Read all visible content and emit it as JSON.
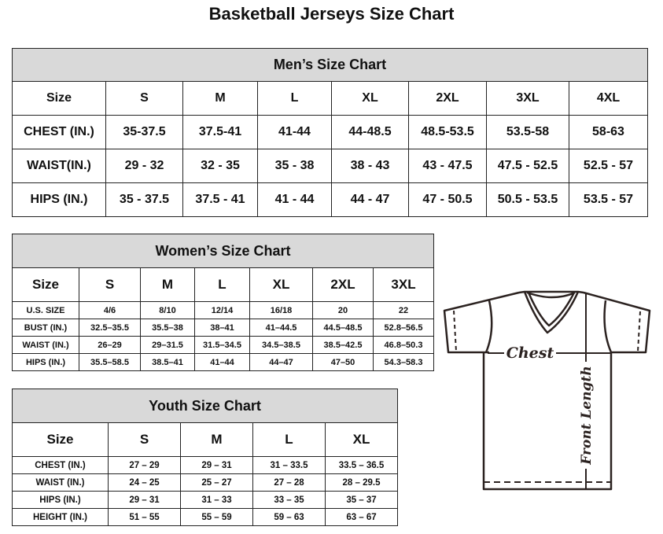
{
  "title": "Basketball Jerseys Size Chart",
  "men": {
    "caption": "Men’s Size Chart",
    "header": [
      "Size",
      "S",
      "M",
      "L",
      "XL",
      "2XL",
      "3XL",
      "4XL"
    ],
    "rows": [
      [
        "CHEST (IN.)",
        "35-37.5",
        "37.5-41",
        "41-44",
        "44-48.5",
        "48.5-53.5",
        "53.5-58",
        "58-63"
      ],
      [
        "WAIST(IN.)",
        "29 - 32",
        "32 - 35",
        "35 - 38",
        "38 - 43",
        "43 - 47.5",
        "47.5 - 52.5",
        "52.5 - 57"
      ],
      [
        "HIPS (IN.)",
        "35 - 37.5",
        "37.5 - 41",
        "41 - 44",
        "44 - 47",
        "47 - 50.5",
        "50.5 - 53.5",
        "53.5 - 57"
      ]
    ]
  },
  "women": {
    "caption": "Women’s Size Chart",
    "header": [
      "Size",
      "S",
      "M",
      "L",
      "XL",
      "2XL",
      "3XL"
    ],
    "rows": [
      [
        "U.S.  SIZE",
        "4/6",
        "8/10",
        "12/14",
        "16/18",
        "20",
        "22"
      ],
      [
        "BUST  (IN.)",
        "32.5–35.5",
        "35.5–38",
        "38–41",
        "41–44.5",
        "44.5–48.5",
        "52.8–56.5"
      ],
      [
        "WAIST  (IN.)",
        "26–29",
        "29–31.5",
        "31.5–34.5",
        "34.5–38.5",
        "38.5–42.5",
        "46.8–50.3"
      ],
      [
        "HIPS  (IN.)",
        "35.5–58.5",
        "38.5–41",
        "41–44",
        "44–47",
        "47–50",
        "54.3–58.3"
      ]
    ]
  },
  "youth": {
    "caption": "Youth Size Chart",
    "header": [
      "Size",
      "S",
      "M",
      "L",
      "XL"
    ],
    "rows": [
      [
        "CHEST  (IN.)",
        "27  –  29",
        "29  –  31",
        "31  –  33.5",
        "33.5  –  36.5"
      ],
      [
        "WAIST  (IN.)",
        "24  –  25",
        "25  –  27",
        "27  –  28",
        "28  –  29.5"
      ],
      [
        "HIPS  (IN.)",
        "29  –  31",
        "31  –  33",
        "33  –  35",
        "35  –  37"
      ],
      [
        "HEIGHT  (IN.)",
        "51  –  55",
        "55  –  59",
        "59  –  63",
        "63  –  67"
      ]
    ]
  },
  "diagram": {
    "chest_label": "Chest",
    "length_label": "Front Length",
    "line_color": "#2b2220"
  }
}
